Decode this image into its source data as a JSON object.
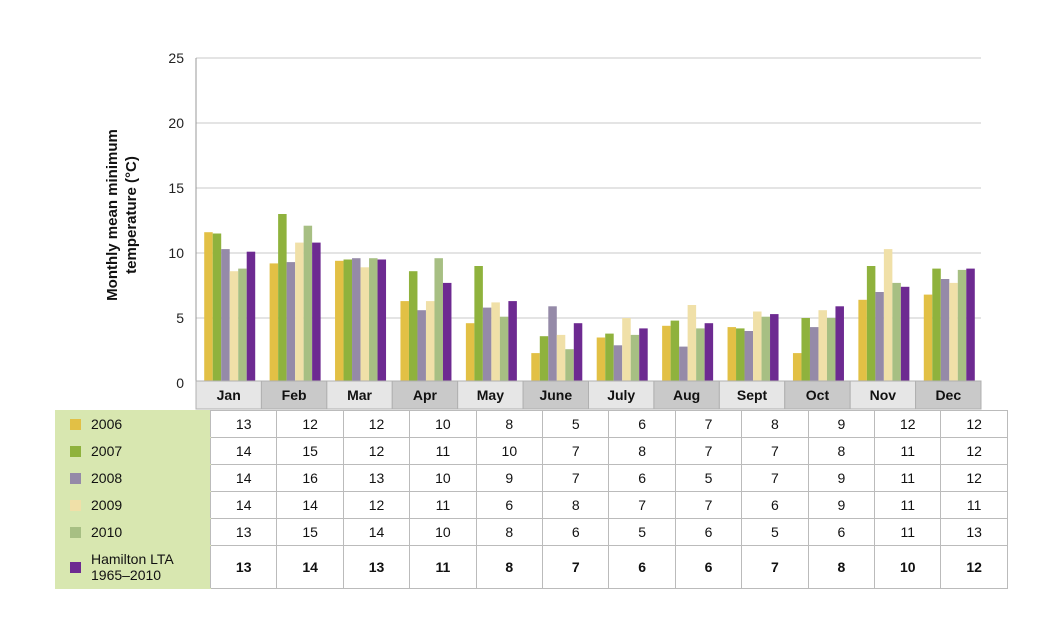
{
  "chart_data": {
    "type": "bar",
    "ylabel": "Monthly mean minimum temperature (°C)",
    "ylim": [
      0,
      25
    ],
    "yticks": [
      0,
      5,
      10,
      15,
      20,
      25
    ],
    "grid": true,
    "categories": [
      "Jan",
      "Feb",
      "Mar",
      "Apr",
      "May",
      "June",
      "July",
      "Aug",
      "Sept",
      "Oct",
      "Nov",
      "Dec"
    ],
    "series": [
      {
        "name": "2006",
        "color": "#e2c045",
        "values": [
          11.6,
          9.2,
          9.4,
          6.3,
          4.6,
          2.3,
          3.5,
          4.4,
          4.3,
          2.3,
          6.4,
          6.8
        ]
      },
      {
        "name": "2007",
        "color": "#8fb23d",
        "values": [
          11.5,
          13.0,
          9.5,
          8.6,
          9.0,
          3.6,
          3.8,
          4.8,
          4.2,
          5.0,
          9.0,
          8.8
        ]
      },
      {
        "name": "2008",
        "color": "#958aa8",
        "values": [
          10.3,
          9.3,
          9.6,
          5.6,
          5.8,
          5.9,
          2.9,
          2.8,
          4.0,
          4.3,
          7.0,
          8.0
        ]
      },
      {
        "name": "2009",
        "color": "#f0e0a8",
        "values": [
          8.6,
          10.8,
          8.9,
          6.3,
          6.2,
          3.7,
          5.0,
          6.0,
          5.5,
          5.6,
          10.3,
          7.7
        ]
      },
      {
        "name": "2010",
        "color": "#a7bf83",
        "values": [
          8.8,
          12.1,
          9.6,
          9.6,
          5.1,
          2.6,
          3.7,
          4.2,
          5.1,
          5.0,
          7.7,
          8.7
        ]
      },
      {
        "name": "Hamilton LTA\n1965–2010",
        "color": "#6d2a91",
        "values": [
          10.1,
          10.8,
          9.5,
          7.7,
          6.3,
          4.6,
          4.2,
          4.6,
          5.3,
          5.9,
          7.4,
          8.8
        ]
      }
    ]
  },
  "table": {
    "rows": [
      {
        "label": "2006",
        "color": "#e2c045",
        "cells": [
          "13",
          "12",
          "12",
          "10",
          "8",
          "5",
          "6",
          "7",
          "8",
          "9",
          "12",
          "12"
        ]
      },
      {
        "label": "2007",
        "color": "#8fb23d",
        "cells": [
          "14",
          "15",
          "12",
          "11",
          "10",
          "7",
          "8",
          "7",
          "7",
          "8",
          "11",
          "12"
        ]
      },
      {
        "label": "2008",
        "color": "#958aa8",
        "cells": [
          "14",
          "16",
          "13",
          "10",
          "9",
          "7",
          "6",
          "5",
          "7",
          "9",
          "11",
          "12"
        ]
      },
      {
        "label": "2009",
        "color": "#f0e0a8",
        "cells": [
          "14",
          "14",
          "12",
          "11",
          "6",
          "8",
          "7",
          "7",
          "6",
          "9",
          "11",
          "11"
        ]
      },
      {
        "label": "2010",
        "color": "#a7bf83",
        "cells": [
          "13",
          "15",
          "14",
          "10",
          "8",
          "6",
          "5",
          "6",
          "5",
          "6",
          "11",
          "13"
        ]
      },
      {
        "label": "Hamilton LTA\n1965–2010",
        "color": "#6d2a91",
        "cells": [
          "13",
          "14",
          "13",
          "11",
          "8",
          "7",
          "6",
          "6",
          "7",
          "8",
          "10",
          "12"
        ]
      }
    ]
  }
}
